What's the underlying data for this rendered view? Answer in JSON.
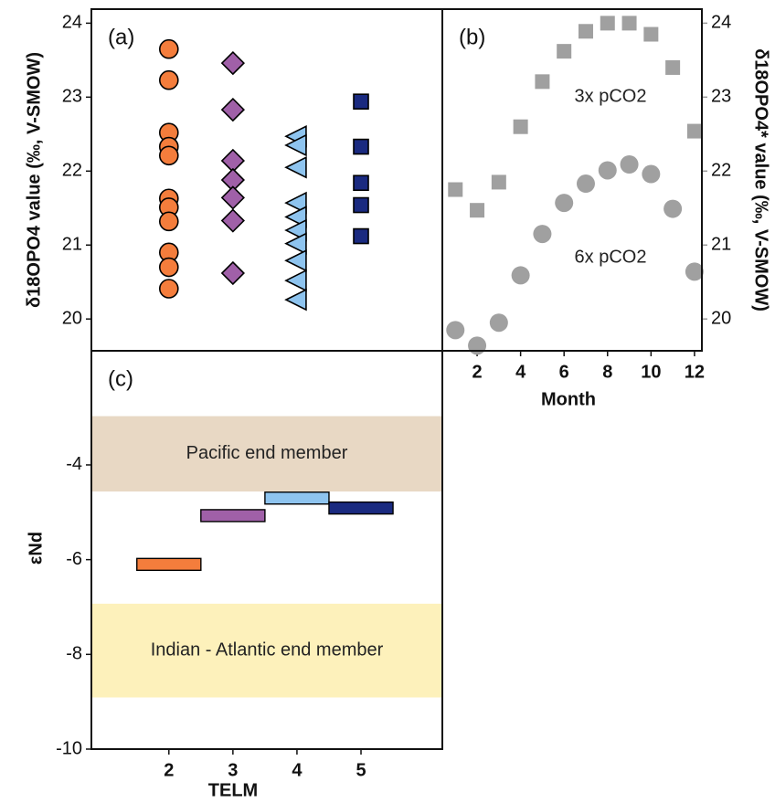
{
  "chart_data": [
    {
      "type": "scatter",
      "label": "(a)",
      "ylabel": "δ18OPO4 value (‰, V-SMOW)",
      "xlim": [
        0.79,
        6.27
      ],
      "ylim": [
        19.57,
        24.19
      ],
      "yticks": [
        20,
        21,
        22,
        23,
        24
      ],
      "series": [
        {
          "color": "#f47d3c",
          "marker": "circle",
          "edgecolor": "#000000",
          "x": [
            2,
            2,
            2,
            2,
            2,
            2,
            2,
            2,
            2,
            2,
            2
          ],
          "values": [
            23.65,
            23.23,
            22.52,
            22.33,
            22.21,
            21.63,
            21.51,
            21.32,
            20.9,
            20.7,
            20.41
          ]
        },
        {
          "color": "#a060a8",
          "marker": "diamond",
          "edgecolor": "#000000",
          "x": [
            3,
            3,
            3,
            3,
            3,
            3,
            3
          ],
          "values": [
            23.46,
            22.83,
            22.14,
            21.88,
            21.64,
            21.33,
            20.62
          ]
        },
        {
          "color": "#8ec4ef",
          "marker": "triangle",
          "edgecolor": "#000000",
          "x": [
            4,
            4,
            4,
            4,
            4,
            4,
            4,
            4,
            4,
            4
          ],
          "values": [
            22.47,
            22.35,
            22.05,
            21.57,
            21.38,
            21.2,
            21.02,
            20.79,
            20.52,
            20.26
          ]
        },
        {
          "color": "#1a2a80",
          "marker": "square",
          "edgecolor": "#000000",
          "x": [
            5,
            5,
            5,
            5,
            5
          ],
          "values": [
            22.94,
            22.33,
            21.84,
            21.54,
            21.12
          ]
        }
      ]
    },
    {
      "type": "scatter",
      "label": "(b)",
      "ylabel": "δ18OPO4* value (‰, V-SMOW)",
      "xlabel": "Month",
      "xlim": [
        0.4,
        12.34
      ],
      "xticks": [
        2,
        4,
        6,
        8,
        10,
        12
      ],
      "ylim": [
        19.57,
        24.19
      ],
      "yticks": [
        20,
        21,
        22,
        23,
        24
      ],
      "tick_color": "#999999",
      "annotations": [
        "3x pCO2",
        "6x pCO2"
      ],
      "series": [
        {
          "color": "#a0a0a0",
          "marker": "square",
          "x": [
            1,
            2,
            3,
            4,
            5,
            6,
            7,
            8,
            9,
            10,
            11,
            12
          ],
          "values": [
            21.75,
            21.47,
            21.85,
            22.6,
            23.21,
            23.62,
            23.89,
            24.0,
            24.0,
            23.85,
            23.4,
            22.54
          ]
        },
        {
          "color": "#a0a0a0",
          "marker": "circle",
          "x": [
            1,
            2,
            3,
            4,
            5,
            6,
            7,
            8,
            9,
            10,
            11,
            12
          ],
          "values": [
            19.85,
            19.64,
            19.95,
            20.59,
            21.15,
            21.57,
            21.83,
            22.01,
            22.09,
            21.96,
            21.49,
            20.64
          ]
        }
      ]
    },
    {
      "type": "scatter",
      "label": "(c)",
      "ylabel": "εNd",
      "xlabel": "TELM",
      "xlim": [
        0.79,
        6.27
      ],
      "xticks": [
        2,
        3,
        4,
        5
      ],
      "ylim": [
        -10,
        -1.59
      ],
      "yticks": [
        -4,
        -6,
        -8,
        -10
      ],
      "bands": [
        {
          "label": "Pacific end member",
          "range": [
            -2.97,
            -4.56
          ],
          "color": "#e8d8c4"
        },
        {
          "label": "Indian - Atlantic end member",
          "range": [
            -6.93,
            -8.91
          ],
          "color": "#fdf1bb"
        }
      ],
      "series": [
        {
          "color": "#f47d3c",
          "marker": "bar",
          "edgecolor": "#000000",
          "x": [
            2
          ],
          "values": [
            -6.1
          ]
        },
        {
          "color": "#a060a8",
          "marker": "bar",
          "edgecolor": "#000000",
          "x": [
            3
          ],
          "values": [
            -5.07
          ]
        },
        {
          "color": "#8ec4ef",
          "marker": "bar",
          "edgecolor": "#000000",
          "x": [
            4
          ],
          "values": [
            -4.7
          ]
        },
        {
          "color": "#1a2a80",
          "marker": "bar",
          "edgecolor": "#000000",
          "x": [
            5
          ],
          "values": [
            -4.91
          ]
        }
      ]
    }
  ]
}
